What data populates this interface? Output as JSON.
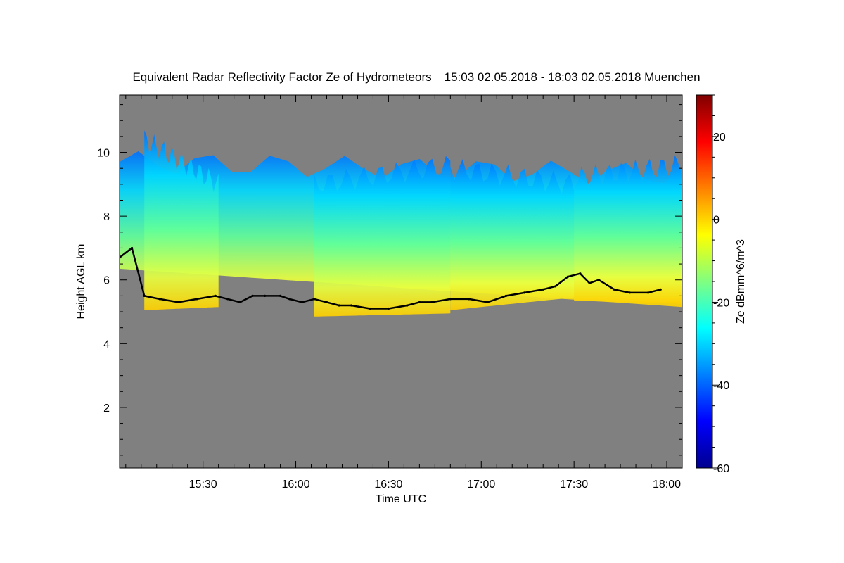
{
  "chart_data": {
    "type": "heatmap",
    "title": "Equivalent Radar Reflectivity Factor Ze of Hydrometeors",
    "subtitle": "15:03 02.05.2018 - 18:03 02.05.2018 Muenchen",
    "xlabel": "Time UTC",
    "ylabel": "Height AGL km",
    "colorbar_label": "Ze dBmm^6/m^3",
    "x_unit": "minutes after 15:00 UTC",
    "xlim": [
      3,
      185
    ],
    "ylim": [
      0.1,
      11.8
    ],
    "clim": [
      -60,
      30
    ],
    "x_ticks": [
      {
        "value": 30,
        "label": "15:30"
      },
      {
        "value": 60,
        "label": "16:00"
      },
      {
        "value": 90,
        "label": "16:30"
      },
      {
        "value": 120,
        "label": "17:00"
      },
      {
        "value": 150,
        "label": "17:30"
      },
      {
        "value": 180,
        "label": "18:00"
      }
    ],
    "y_ticks": [
      2,
      4,
      6,
      8,
      10
    ],
    "colorbar_ticks": [
      -60,
      -40,
      -20,
      0,
      20
    ],
    "background_color": "#808080",
    "colormap": [
      "#00008f",
      "#0000ff",
      "#0080ff",
      "#00ffff",
      "#80ff80",
      "#ffff00",
      "#ff8000",
      "#ff0000",
      "#800000"
    ],
    "cloud_base_color": "#000000",
    "cloud_base_series": {
      "name": "",
      "x": [
        3,
        7,
        11,
        16,
        22,
        28,
        34,
        38,
        42,
        46,
        50,
        55,
        58,
        62,
        66,
        70,
        74,
        78,
        84,
        90,
        96,
        100,
        104,
        110,
        116,
        122,
        128,
        134,
        140,
        144,
        148,
        152,
        155,
        158,
        163,
        168,
        174,
        178
      ],
      "y": [
        6.7,
        7.0,
        5.5,
        5.4,
        5.3,
        5.4,
        5.5,
        5.4,
        5.3,
        5.5,
        5.5,
        5.5,
        5.4,
        5.3,
        5.4,
        5.3,
        5.2,
        5.2,
        5.1,
        5.1,
        5.2,
        5.3,
        5.3,
        5.4,
        5.4,
        5.3,
        5.5,
        5.6,
        5.7,
        5.8,
        6.1,
        6.2,
        5.9,
        6.0,
        5.7,
        5.6,
        5.6,
        5.7
      ]
    },
    "echo_regions": [
      {
        "x": [
          3,
          185
        ],
        "base": [
          6.6,
          5.4
        ],
        "top": [
          9.7,
          9.3
        ],
        "ze_peak": -5
      },
      {
        "x": [
          11,
          35
        ],
        "base": [
          5.3,
          5.4
        ],
        "top": [
          10.4,
          9.0
        ],
        "ze_peak": -3
      },
      {
        "x": [
          66,
          110
        ],
        "base": [
          5.1,
          5.2
        ],
        "top": [
          9.0,
          9.6
        ],
        "ze_peak": -4
      },
      {
        "x": [
          110,
          150
        ],
        "base": [
          5.3,
          5.7
        ],
        "top": [
          9.5,
          9.0
        ],
        "ze_peak": -6
      },
      {
        "x": [
          150,
          185
        ],
        "base": [
          5.6,
          5.5
        ],
        "top": [
          9.2,
          9.6
        ],
        "ze_peak": -2
      }
    ]
  }
}
